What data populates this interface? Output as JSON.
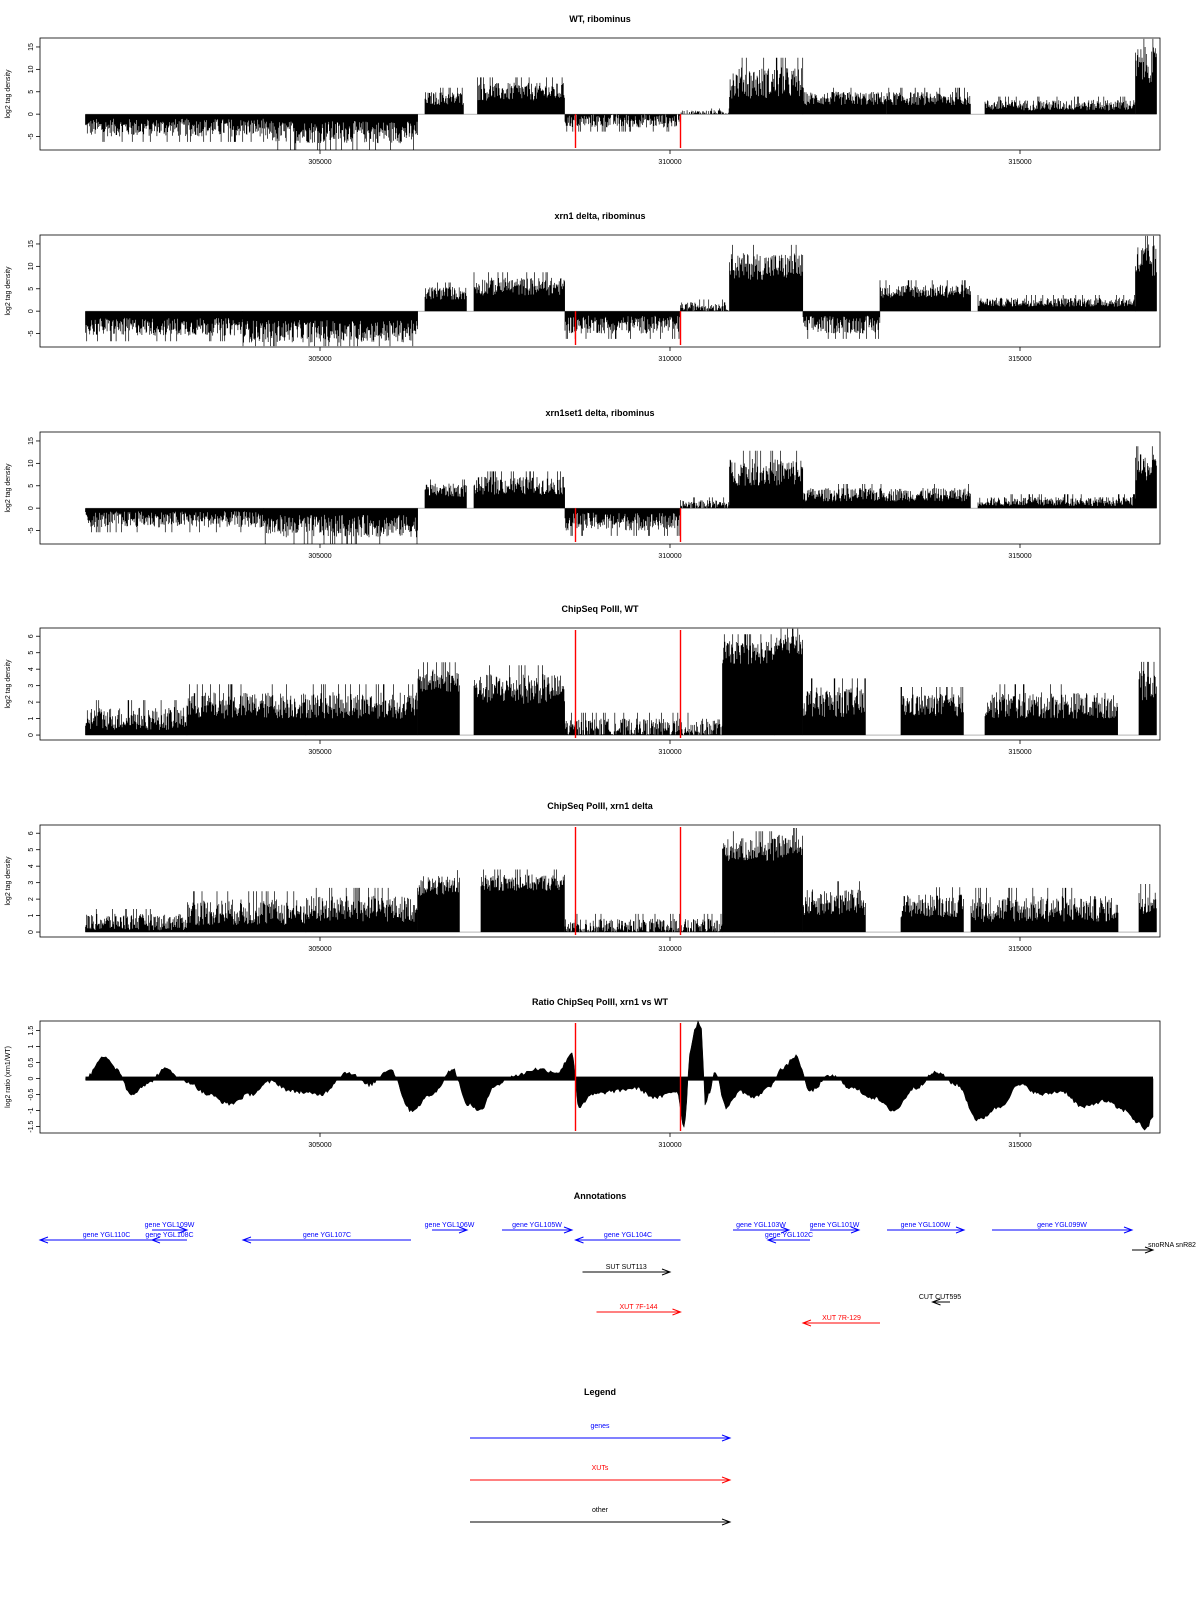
{
  "chart_data": [
    {
      "type": "bar",
      "title": "WT, ribominus",
      "ylabel": "log2 tag density",
      "xlabel": "",
      "xlim": [
        301000,
        317000
      ],
      "ylim": [
        -8,
        17
      ],
      "yticks": [
        -5,
        0,
        5,
        10,
        15
      ],
      "ytick_labels": [
        "-5",
        "0",
        "5",
        "10",
        "15"
      ],
      "xticks": [
        305000,
        310000,
        315000
      ],
      "xtick_labels": [
        "305000",
        "310000",
        "315000"
      ],
      "red_lines": [
        308650,
        310150
      ],
      "segments": [
        {
          "from": 301650,
          "to": 304200,
          "level": -3.0,
          "spread": 2.0
        },
        {
          "from": 304200,
          "to": 306400,
          "level": -4.0,
          "spread": 2.5
        },
        {
          "from": 306500,
          "to": 307050,
          "level": 3.5,
          "spread": 1.5
        },
        {
          "from": 307250,
          "to": 308500,
          "level": 5.0,
          "spread": 2.0
        },
        {
          "from": 308500,
          "to": 310150,
          "level": -1.5,
          "spread": 1.5
        },
        {
          "from": 310150,
          "to": 310850,
          "level": 0.3,
          "spread": 0.6
        },
        {
          "from": 310850,
          "to": 311900,
          "level": 7.0,
          "spread": 3.5
        },
        {
          "from": 311900,
          "to": 313100,
          "level": 3.5,
          "spread": 1.5
        },
        {
          "from": 313100,
          "to": 314300,
          "level": 3.5,
          "spread": 1.5
        },
        {
          "from": 314500,
          "to": 316650,
          "level": 2.0,
          "spread": 1.2
        },
        {
          "from": 316650,
          "to": 316950,
          "level": 11.0,
          "spread": 4.0
        }
      ]
    },
    {
      "type": "bar",
      "title": "xrn1 delta, ribominus",
      "ylabel": "log2 tag density",
      "xlabel": "",
      "xlim": [
        301000,
        317000
      ],
      "ylim": [
        -8,
        17
      ],
      "yticks": [
        -5,
        0,
        5,
        10,
        15
      ],
      "ytick_labels": [
        "-5",
        "0",
        "5",
        "10",
        "15"
      ],
      "xticks": [
        305000,
        310000,
        315000
      ],
      "xtick_labels": [
        "305000",
        "310000",
        "315000"
      ],
      "red_lines": [
        308650,
        310150
      ],
      "segments": [
        {
          "from": 301650,
          "to": 303900,
          "level": -3.5,
          "spread": 2.0
        },
        {
          "from": 303900,
          "to": 306400,
          "level": -4.5,
          "spread": 2.5
        },
        {
          "from": 306500,
          "to": 307100,
          "level": 4.0,
          "spread": 1.5
        },
        {
          "from": 307200,
          "to": 308500,
          "level": 5.5,
          "spread": 2.0
        },
        {
          "from": 308500,
          "to": 310150,
          "level": -3.0,
          "spread": 2.0
        },
        {
          "from": 310150,
          "to": 310850,
          "level": 1.0,
          "spread": 1.0
        },
        {
          "from": 310850,
          "to": 311900,
          "level": 10.0,
          "spread": 3.0
        },
        {
          "from": 311900,
          "to": 313000,
          "level": -3.0,
          "spread": 2.0
        },
        {
          "from": 313000,
          "to": 314300,
          "level": 4.5,
          "spread": 1.5
        },
        {
          "from": 314400,
          "to": 316650,
          "level": 2.0,
          "spread": 1.0
        },
        {
          "from": 316650,
          "to": 316950,
          "level": 11.0,
          "spread": 4.0
        }
      ]
    },
    {
      "type": "bar",
      "title": "xrn1set1 delta, ribominus",
      "ylabel": "log2 tag density",
      "xlabel": "",
      "xlim": [
        301000,
        317000
      ],
      "ylim": [
        -8,
        17
      ],
      "yticks": [
        -5,
        0,
        5,
        10,
        15
      ],
      "ytick_labels": [
        "-5",
        "0",
        "5",
        "10",
        "15"
      ],
      "xticks": [
        305000,
        310000,
        315000
      ],
      "xtick_labels": [
        "305000",
        "310000",
        "315000"
      ],
      "red_lines": [
        308650,
        310150
      ],
      "segments": [
        {
          "from": 301650,
          "to": 304200,
          "level": -2.5,
          "spread": 1.8
        },
        {
          "from": 304200,
          "to": 306400,
          "level": -4.0,
          "spread": 2.5
        },
        {
          "from": 306500,
          "to": 307100,
          "level": 4.0,
          "spread": 1.5
        },
        {
          "from": 307200,
          "to": 308500,
          "level": 5.0,
          "spread": 2.0
        },
        {
          "from": 308500,
          "to": 310150,
          "level": -3.0,
          "spread": 2.0
        },
        {
          "from": 310150,
          "to": 310850,
          "level": 0.8,
          "spread": 1.0
        },
        {
          "from": 310850,
          "to": 311900,
          "level": 8.0,
          "spread": 3.0
        },
        {
          "from": 311900,
          "to": 314300,
          "level": 3.0,
          "spread": 1.5
        },
        {
          "from": 314400,
          "to": 316650,
          "level": 1.5,
          "spread": 1.0
        },
        {
          "from": 316650,
          "to": 316950,
          "level": 9.0,
          "spread": 3.0
        }
      ]
    },
    {
      "type": "bar",
      "title": "ChipSeq PolII, WT",
      "ylabel": "log2 tag density",
      "xlabel": "",
      "xlim": [
        301000,
        317000
      ],
      "ylim": [
        -0.3,
        6.5
      ],
      "yticks": [
        0,
        1,
        2,
        3,
        4,
        5,
        6
      ],
      "ytick_labels": [
        "0",
        "1",
        "2",
        "3",
        "4",
        "5",
        "6"
      ],
      "xticks": [
        305000,
        310000,
        315000
      ],
      "xtick_labels": [
        "305000",
        "310000",
        "315000"
      ],
      "red_lines": [
        308650,
        310150
      ],
      "segments": [
        {
          "from": 301650,
          "to": 303100,
          "level": 1.0,
          "spread": 0.7
        },
        {
          "from": 303100,
          "to": 304800,
          "level": 1.8,
          "spread": 0.8
        },
        {
          "from": 304800,
          "to": 306400,
          "level": 1.8,
          "spread": 0.8
        },
        {
          "from": 306400,
          "to": 307000,
          "level": 3.3,
          "spread": 0.7
        },
        {
          "from": 307200,
          "to": 308500,
          "level": 2.8,
          "spread": 0.9
        },
        {
          "from": 308500,
          "to": 310750,
          "level": 0.4,
          "spread": 0.6
        },
        {
          "from": 310750,
          "to": 311500,
          "level": 5.0,
          "spread": 0.7
        },
        {
          "from": 311500,
          "to": 311900,
          "level": 5.5,
          "spread": 0.6
        },
        {
          "from": 311900,
          "to": 312800,
          "level": 2.0,
          "spread": 0.9
        },
        {
          "from": 313300,
          "to": 314200,
          "level": 1.8,
          "spread": 0.7
        },
        {
          "from": 314500,
          "to": 316400,
          "level": 1.8,
          "spread": 0.8
        },
        {
          "from": 316700,
          "to": 316950,
          "level": 3.0,
          "spread": 0.9
        }
      ]
    },
    {
      "type": "bar",
      "title": "ChipSeq PolII, xrn1 delta",
      "ylabel": "log2 tag density",
      "xlabel": "",
      "xlim": [
        301000,
        317000
      ],
      "ylim": [
        -0.3,
        6.5
      ],
      "yticks": [
        0,
        1,
        2,
        3,
        4,
        5,
        6
      ],
      "ytick_labels": [
        "0",
        "1",
        "2",
        "3",
        "4",
        "5",
        "6"
      ],
      "xticks": [
        305000,
        310000,
        315000
      ],
      "xtick_labels": [
        "305000",
        "310000",
        "315000"
      ],
      "red_lines": [
        308650,
        310150
      ],
      "segments": [
        {
          "from": 301650,
          "to": 303100,
          "level": 0.6,
          "spread": 0.5
        },
        {
          "from": 303100,
          "to": 304800,
          "level": 1.2,
          "spread": 0.8
        },
        {
          "from": 304800,
          "to": 306400,
          "level": 1.4,
          "spread": 0.8
        },
        {
          "from": 306400,
          "to": 307000,
          "level": 2.8,
          "spread": 0.6
        },
        {
          "from": 307300,
          "to": 308500,
          "level": 3.0,
          "spread": 0.5
        },
        {
          "from": 308500,
          "to": 310750,
          "level": 0.3,
          "spread": 0.5
        },
        {
          "from": 310750,
          "to": 311500,
          "level": 5.0,
          "spread": 0.7
        },
        {
          "from": 311500,
          "to": 311900,
          "level": 5.2,
          "spread": 0.7
        },
        {
          "from": 311900,
          "to": 312800,
          "level": 1.8,
          "spread": 0.8
        },
        {
          "from": 313300,
          "to": 314200,
          "level": 1.6,
          "spread": 0.7
        },
        {
          "from": 314300,
          "to": 316400,
          "level": 1.4,
          "spread": 0.8
        },
        {
          "from": 316700,
          "to": 316950,
          "level": 1.8,
          "spread": 0.7
        }
      ]
    },
    {
      "type": "area",
      "title": "Ratio ChipSeq PolII, xrn1 vs WT",
      "ylabel": "log2 ratio (xrn1/WT)",
      "xlabel": "",
      "xlim": [
        301000,
        317000
      ],
      "ylim": [
        -1.7,
        1.8
      ],
      "yticks": [
        -1.5,
        -1,
        -0.5,
        0,
        0.5,
        1,
        1.5
      ],
      "ytick_labels": [
        "-1.5",
        "-1",
        "-0.5",
        "0",
        "0.5",
        "1",
        "1.5"
      ],
      "xticks": [
        305000,
        310000,
        315000
      ],
      "xtick_labels": [
        "305000",
        "310000",
        "315000"
      ],
      "red_lines": [
        308650,
        310150
      ],
      "baseline": 0,
      "x": [
        301650,
        301900,
        302100,
        302300,
        302500,
        302800,
        303100,
        303400,
        303700,
        304000,
        304300,
        304600,
        305000,
        305400,
        305700,
        306000,
        306300,
        306600,
        306900,
        307100,
        307300,
        307500,
        307800,
        308100,
        308400,
        308600,
        308700,
        308900,
        309200,
        309500,
        309800,
        310100,
        310200,
        310300,
        310350,
        310400,
        310450,
        310500,
        310550,
        310650,
        310800,
        311000,
        311200,
        311400,
        311600,
        311800,
        312000,
        312300,
        312600,
        312900,
        313200,
        313500,
        313800,
        314100,
        314400,
        314700,
        315000,
        315300,
        315600,
        315900,
        316200,
        316500,
        316700,
        316800,
        316900
      ],
      "y": [
        0.0,
        0.7,
        0.3,
        -0.5,
        -0.2,
        0.3,
        -0.1,
        -0.5,
        -0.8,
        -0.5,
        -0.1,
        -0.4,
        -0.5,
        0.2,
        -0.2,
        0.3,
        -1.0,
        -0.5,
        0.3,
        -0.8,
        -1.0,
        -0.2,
        0.1,
        0.3,
        0.2,
        0.8,
        -0.9,
        -0.5,
        -0.4,
        -0.3,
        -0.6,
        -0.4,
        -1.5,
        1.0,
        1.5,
        1.8,
        1.6,
        -0.8,
        -0.5,
        0.2,
        -0.9,
        -0.4,
        -0.6,
        -0.3,
        0.3,
        0.7,
        -0.4,
        0.1,
        -0.3,
        -0.6,
        -1.0,
        -0.3,
        0.2,
        -0.2,
        -1.3,
        -0.9,
        -0.2,
        -0.5,
        -0.4,
        -0.9,
        -0.7,
        -1.0,
        -1.4,
        -1.6,
        -1.2
      ]
    }
  ],
  "annotations": {
    "title": "Annotations",
    "items": [
      {
        "label": "gene YGL110C",
        "type": "gene",
        "from": 302900,
        "to": 301000,
        "row": 1,
        "dir": "left"
      },
      {
        "label": "gene YGL109W",
        "type": "gene",
        "from": 302600,
        "to": 303100,
        "row": 0,
        "dir": "right"
      },
      {
        "label": "gene YGL108C",
        "type": "gene",
        "from": 303100,
        "to": 302600,
        "row": 1,
        "dir": "left"
      },
      {
        "label": "gene YGL107C",
        "type": "gene",
        "from": 306300,
        "to": 303900,
        "row": 1,
        "dir": "left"
      },
      {
        "label": "gene YGL106W",
        "type": "gene",
        "from": 306600,
        "to": 307100,
        "row": 0,
        "dir": "right"
      },
      {
        "label": "gene YGL105W",
        "type": "gene",
        "from": 307600,
        "to": 308600,
        "row": 0,
        "dir": "right"
      },
      {
        "label": "gene YGL104C",
        "type": "gene",
        "from": 310150,
        "to": 308650,
        "row": 1,
        "dir": "left"
      },
      {
        "label": "gene YGL103W",
        "type": "gene",
        "from": 310900,
        "to": 311700,
        "row": 0,
        "dir": "right"
      },
      {
        "label": "gene YGL102C",
        "type": "gene",
        "from": 312000,
        "to": 311400,
        "row": 1,
        "dir": "left"
      },
      {
        "label": "gene YGL101W",
        "type": "gene",
        "from": 312000,
        "to": 312700,
        "row": 0,
        "dir": "right"
      },
      {
        "label": "gene YGL100W",
        "type": "gene",
        "from": 313100,
        "to": 314200,
        "row": 0,
        "dir": "right"
      },
      {
        "label": "gene YGL099W",
        "type": "gene",
        "from": 314600,
        "to": 316600,
        "row": 0,
        "dir": "right"
      },
      {
        "label": "snoRNA snR82",
        "type": "other",
        "from": 316600,
        "to": 316900,
        "row": 2,
        "dir": "right"
      },
      {
        "label": "SUT SUT113",
        "type": "other",
        "from": 308750,
        "to": 310000,
        "row": 3,
        "dir": "right"
      },
      {
        "label": "CUT CUT595",
        "type": "other",
        "from": 314000,
        "to": 313750,
        "row": 4,
        "dir": "left"
      },
      {
        "label": "XUT 7F-144",
        "type": "xut",
        "from": 308950,
        "to": 310150,
        "row": 5,
        "dir": "right"
      },
      {
        "label": "XUT 7R-129",
        "type": "xut",
        "from": 313000,
        "to": 311900,
        "row": 6,
        "dir": "left"
      }
    ]
  },
  "legend": {
    "title": "Legend",
    "items": [
      {
        "label": "genes",
        "color": "#0000ff"
      },
      {
        "label": "XUTs",
        "color": "#ff0000"
      },
      {
        "label": "other",
        "color": "#000000"
      }
    ]
  },
  "colors": {
    "gene": "#0000ff",
    "xut": "#ff0000",
    "other": "#000000",
    "bars": "#000000",
    "highlight": "#ff0000"
  }
}
